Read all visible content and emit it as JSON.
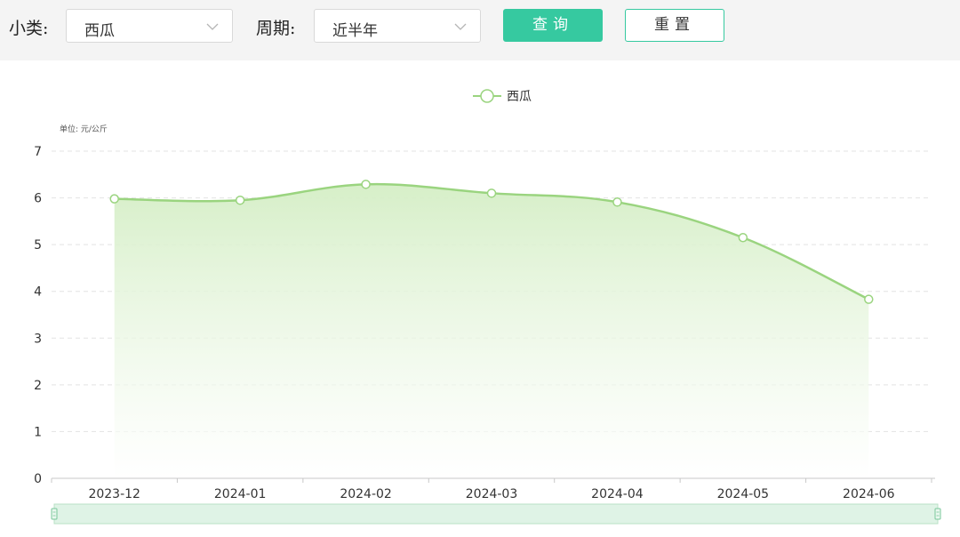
{
  "filters": {
    "category_label": "小类:",
    "category_value": "西瓜",
    "period_label": "周期:",
    "period_value": "近半年",
    "query_button": "查询",
    "reset_button": "重置"
  },
  "colors": {
    "accent": "#36c9a0",
    "series_line": "#9ad47f",
    "area_top": "#d4eec5",
    "slider_fill": "#dff3e6"
  },
  "chart_data": {
    "type": "area",
    "unit_label": "单位: 元/公斤",
    "categories": [
      "2023-12",
      "2024-01",
      "2024-02",
      "2024-03",
      "2024-04",
      "2024-05",
      "2024-06"
    ],
    "series": [
      {
        "name": "西瓜",
        "values": [
          5.98,
          5.95,
          6.29,
          6.1,
          5.91,
          5.15,
          3.83
        ]
      }
    ],
    "yticks": [
      "0",
      "1",
      "2",
      "3",
      "4",
      "5",
      "6",
      "7"
    ],
    "ylim": [
      0,
      7
    ],
    "grid": true,
    "legend_position": "top-center",
    "data_zoom": true
  }
}
